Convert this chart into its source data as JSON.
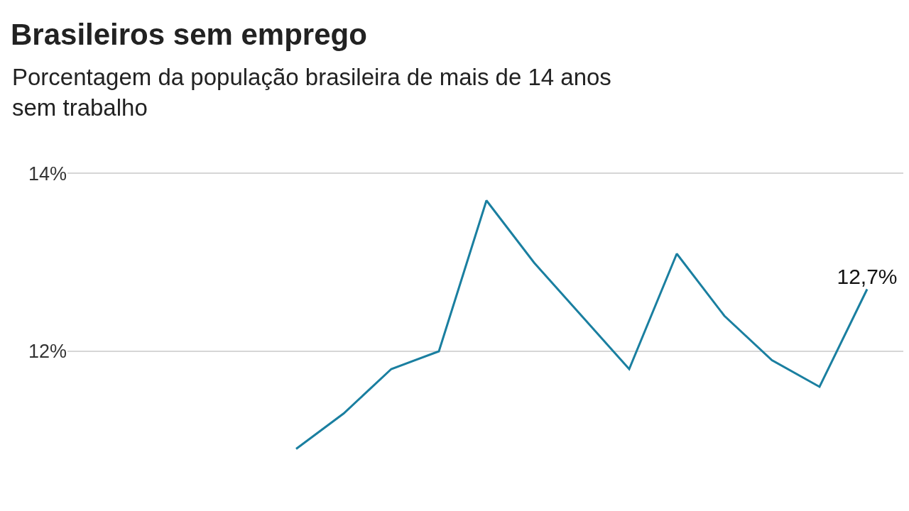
{
  "chart_data": {
    "type": "line",
    "title": "Brasileiros sem emprego",
    "subtitle": "Porcentagem da população brasileira de mais de 14 anos sem trabalho",
    "categories": [
      null,
      null,
      null,
      null,
      null,
      null,
      null,
      null,
      null,
      null,
      null,
      null,
      null
    ],
    "series": [
      {
        "color": "#1a7fa0",
        "values": [
          10.9,
          11.3,
          11.8,
          12.0,
          13.7,
          13.0,
          12.4,
          11.8,
          13.1,
          12.4,
          11.9,
          11.6,
          12.7
        ],
        "value_labels": [
          null,
          null,
          null,
          null,
          null,
          null,
          null,
          null,
          null,
          null,
          null,
          null,
          "12,7%"
        ]
      }
    ],
    "ylim": [
      10.2,
      14
    ],
    "yticks": [
      {
        "value": 12,
        "label": "12%"
      },
      {
        "value": 14,
        "label": "14%"
      }
    ],
    "grid": "y",
    "tick_labels": "y",
    "marker": "none",
    "line_style": "solid"
  }
}
